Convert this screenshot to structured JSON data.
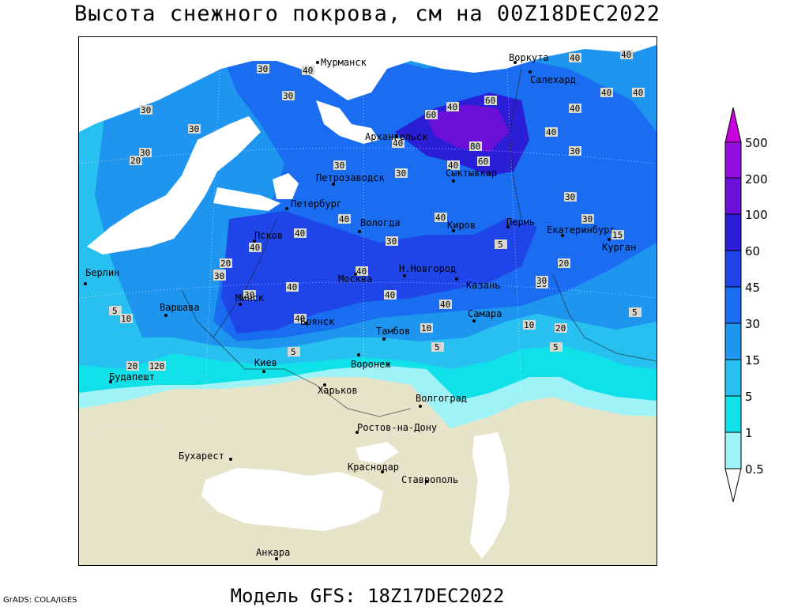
{
  "title": "Высота снежного покрова, см на 00Z18DEC2022",
  "subtitle": "Модель GFS: 18Z17DEC2022",
  "credit": "GrADS: COLA/IGES",
  "legend": {
    "levels": [
      "0.5",
      "1",
      "5",
      "15",
      "30",
      "45",
      "60",
      "100",
      "200",
      "500"
    ],
    "colors": [
      "#ffffff",
      "#9ff2f5",
      "#10e0e8",
      "#28c0f0",
      "#1e96f0",
      "#1a6cf0",
      "#1f45e8",
      "#2a1ed6",
      "#6a10d8",
      "#9410e0",
      "#c800e0"
    ]
  },
  "map_colors": {
    "land": "#e5e3c8",
    "sea": "#ffffff",
    "snow_light": "#9ff2f5",
    "snow_1_5": "#10e0e8",
    "snow_5_15": "#28c0f0",
    "snow_15_30": "#1e96f0",
    "snow_30_45": "#1a6cf0",
    "snow_45_60": "#1f45e8",
    "snow_60_100": "#2a1ed6",
    "snow_100_200": "#6a10d8"
  },
  "cities": [
    {
      "name": "Мурманск"
    },
    {
      "name": "Воркута"
    },
    {
      "name": "Салехард"
    },
    {
      "name": "Архангельск"
    },
    {
      "name": "Сыктывкар"
    },
    {
      "name": "Петрозаводск"
    },
    {
      "name": "Петербург"
    },
    {
      "name": "Вологда"
    },
    {
      "name": "Киров"
    },
    {
      "name": "Пермь"
    },
    {
      "name": "Екатеринбург"
    },
    {
      "name": "Курган"
    },
    {
      "name": "Псков"
    },
    {
      "name": "Берлин"
    },
    {
      "name": "Н.Новгород"
    },
    {
      "name": "Москва"
    },
    {
      "name": "Казань"
    },
    {
      "name": "Минск"
    },
    {
      "name": "Варшава"
    },
    {
      "name": "Самара"
    },
    {
      "name": "Брянск"
    },
    {
      "name": "Тамбов"
    },
    {
      "name": "Киев"
    },
    {
      "name": "Воронеж"
    },
    {
      "name": "Будапешт"
    },
    {
      "name": "Харьков"
    },
    {
      "name": "Волгоград"
    },
    {
      "name": "Ростов-на-Дону"
    },
    {
      "name": "Бухарест"
    },
    {
      "name": "Краснодар"
    },
    {
      "name": "Ставрополь"
    },
    {
      "name": "Анкара"
    }
  ],
  "contour_labels": [
    "30",
    "40",
    "40",
    "40",
    "30",
    "30",
    "40",
    "60",
    "60",
    "80",
    "60",
    "40",
    "40",
    "40",
    "40",
    "30",
    "30",
    "30",
    "30",
    "20",
    "30",
    "40",
    "40",
    "30",
    "40",
    "30",
    "40",
    "40",
    "40",
    "30",
    "30",
    "40",
    "30",
    "30",
    "20",
    "30",
    "15",
    "40",
    "40",
    "40",
    "40",
    "5",
    "10",
    "10",
    "20",
    "10",
    "5",
    "20",
    "30",
    "5",
    "5",
    "10",
    "5",
    "5",
    "20",
    "20"
  ]
}
